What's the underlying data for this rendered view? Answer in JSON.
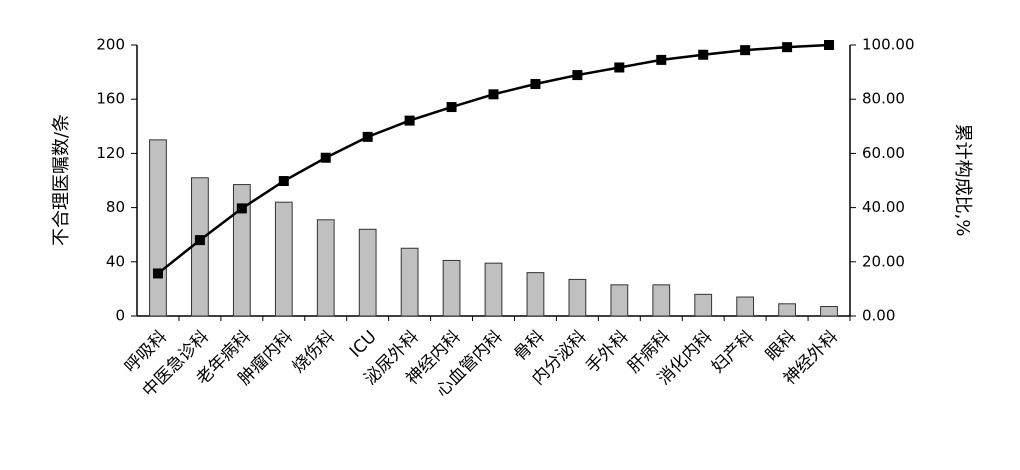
{
  "chart_data": {
    "type": "pareto",
    "y_label": "不合理医嘱数/条",
    "y2_label": "累计构成比,%",
    "categories": [
      "呼吸科",
      "中医急诊科",
      "老年病科",
      "肿瘤内科",
      "烧伤科",
      "ICU",
      "泌尿外科",
      "神经内科",
      "心血管内科",
      "骨科",
      "内分泌科",
      "手外科",
      "肝病科",
      "消化内科",
      "妇产科",
      "眼科",
      "神经外科"
    ],
    "series": [
      {
        "color": "#c0c0c0",
        "values": [
          130,
          102,
          97,
          84,
          71,
          64,
          50,
          41,
          39,
          32,
          27,
          23,
          23,
          16,
          14,
          9,
          7
        ]
      },
      {
        "color": "#000000",
        "axis": "y2",
        "values": [
          15.7,
          28.0,
          39.7,
          49.8,
          58.4,
          66.1,
          72.1,
          77.1,
          81.8,
          85.6,
          88.9,
          91.7,
          94.5,
          96.4,
          98.1,
          99.2,
          100.0
        ]
      }
    ],
    "ylim": [
      0,
      200
    ],
    "yticks": [
      0,
      40,
      80,
      120,
      160,
      200
    ],
    "y2lim": [
      0,
      100
    ],
    "y2ticks": [
      {
        "value": 0,
        "label": "0.00"
      },
      {
        "value": 20,
        "label": "20.00"
      },
      {
        "value": 40,
        "label": "40.00"
      },
      {
        "value": 60,
        "label": "60.00"
      },
      {
        "value": 80,
        "label": "80.00"
      },
      {
        "value": 100,
        "label": "100.00"
      }
    ],
    "grid": false
  }
}
